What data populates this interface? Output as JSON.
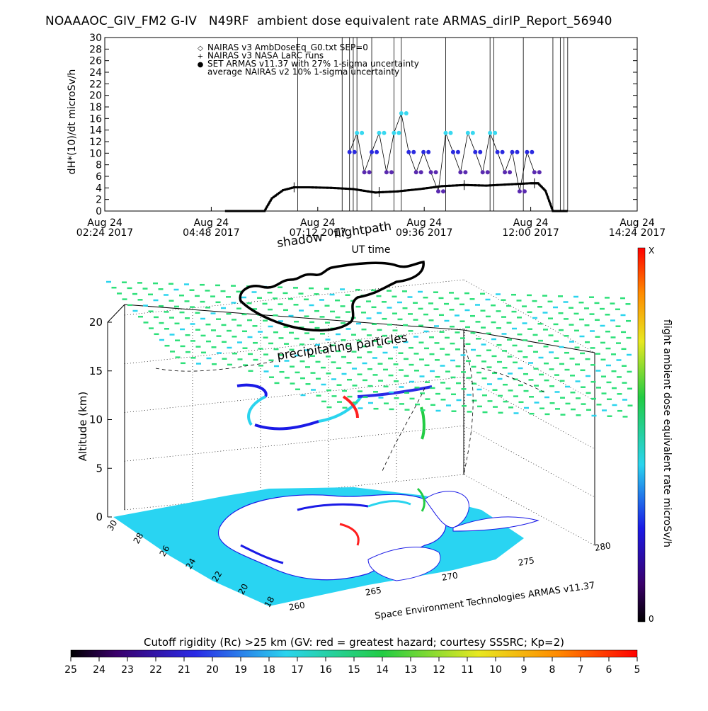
{
  "title": "NOAAAOC_GIV_FM2 G-IV   N49RF  ambient dose equivalent rate ARMAS_dirIP_Report_56940",
  "top_chart": {
    "ylabel": "dH*(10)/dt microSv/h",
    "xlabel": "UT time",
    "x_ticks": [
      {
        "line1": "Aug 24",
        "line2": "02:24 2017"
      },
      {
        "line1": "Aug 24",
        "line2": "04:48 2017"
      },
      {
        "line1": "Aug 24",
        "line2": "07:12 2017"
      },
      {
        "line1": "Aug 24",
        "line2": "09:36 2017"
      },
      {
        "line1": "Aug 24",
        "line2": "12:00 2017"
      },
      {
        "line1": "Aug 24",
        "line2": "14:24 2017"
      }
    ],
    "y_ticks": [
      "0",
      "2",
      "4",
      "6",
      "8",
      "10",
      "12",
      "14",
      "16",
      "18",
      "20",
      "22",
      "24",
      "26",
      "28",
      "30"
    ],
    "legend": [
      {
        "symbol": "◇",
        "text": "NAIRAS v3 AmbDoseEq_G0.txt SEP=0"
      },
      {
        "symbol": "+",
        "text": "NAIRAS v3 NASA LaRC runs"
      },
      {
        "symbol": "●",
        "text": "SET ARMAS v11.37 with 27% 1-sigma uncertainty"
      },
      {
        "symbol": "",
        "text": "average NAIRAS v2 10% 1-sigma uncertainty"
      }
    ]
  },
  "chart_data": [
    {
      "type": "line",
      "title": "NOAAAOC_GIV_FM2 G-IV   N49RF  ambient dose equivalent rate ARMAS_dirIP_Report_56940",
      "xlabel": "UT time",
      "ylabel": "dH*(10)/dt microSv/h",
      "xlim": [
        "2017-08-24 02:24",
        "2017-08-24 14:24"
      ],
      "ylim": [
        0,
        30
      ],
      "series": [
        {
          "name": "NAIRAS v3 AmbDoseEq_G0.txt SEP=0",
          "x": [
            "2017-08-24 05:08",
            "2017-08-24 06:00",
            "2017-08-24 06:10",
            "2017-08-24 06:25",
            "2017-08-24 06:40",
            "2017-08-24 07:00",
            "2017-08-24 07:30",
            "2017-08-24 08:00",
            "2017-08-24 08:30",
            "2017-08-24 09:00",
            "2017-08-24 09:30",
            "2017-08-24 10:00",
            "2017-08-24 10:30",
            "2017-08-24 11:00",
            "2017-08-24 11:30",
            "2017-08-24 12:00",
            "2017-08-24 12:10",
            "2017-08-24 12:20",
            "2017-08-24 12:30",
            "2017-08-24 12:50"
          ],
          "y": [
            0,
            0,
            2.2,
            3.6,
            4.1,
            4.1,
            4.0,
            3.8,
            3.2,
            3.4,
            3.8,
            4.3,
            4.5,
            4.4,
            4.6,
            4.8,
            4.8,
            3.5,
            0,
            0
          ]
        },
        {
          "name": "SET ARMAS v11.37 with 27% 1-sigma uncertainty",
          "x": [
            "2017-08-24 07:55",
            "2017-08-24 08:05",
            "2017-08-24 08:15",
            "2017-08-24 08:25",
            "2017-08-24 08:35",
            "2017-08-24 08:45",
            "2017-08-24 08:55",
            "2017-08-24 09:05",
            "2017-08-24 09:15",
            "2017-08-24 09:25",
            "2017-08-24 09:35",
            "2017-08-24 09:45",
            "2017-08-24 09:55",
            "2017-08-24 10:05",
            "2017-08-24 10:15",
            "2017-08-24 10:25",
            "2017-08-24 10:35",
            "2017-08-24 10:45",
            "2017-08-24 10:55",
            "2017-08-24 11:05",
            "2017-08-24 11:15",
            "2017-08-24 11:25",
            "2017-08-24 11:35",
            "2017-08-24 11:45",
            "2017-08-24 11:55",
            "2017-08-24 12:05"
          ],
          "y": [
            10.2,
            13.5,
            6.7,
            10.2,
            13.5,
            6.7,
            13.5,
            16.9,
            10.2,
            6.7,
            10.2,
            6.7,
            3.4,
            13.5,
            10.2,
            6.7,
            13.5,
            10.2,
            6.7,
            13.5,
            10.2,
            6.7,
            10.2,
            3.4,
            10.2,
            6.7
          ]
        }
      ]
    },
    {
      "type": "scatter",
      "title": "",
      "xlabel": "",
      "ylabel": "Altitude (km)",
      "zlim": [
        0,
        20
      ],
      "z_ticks": [
        "0",
        "5",
        "10",
        "15",
        "20"
      ],
      "lat_ticks": [
        "18",
        "20",
        "22",
        "24",
        "26",
        "28",
        "30"
      ],
      "lon_ticks": [
        "260",
        "265",
        "270",
        "275",
        "280"
      ],
      "annotations": [
        "shadow",
        "flightpath",
        "precipitating particles"
      ],
      "colorbar": {
        "label": "flight ambient dose equivalent rate microSv/h",
        "max_label": "X",
        "min_label": "0"
      }
    },
    {
      "type": "heatmap",
      "title": "Cutoff rigidity (Rc) >25 km (GV: red = greatest hazard; courtesy SSSRC; Kp=2)",
      "ticks": [
        "25",
        "24",
        "23",
        "22",
        "21",
        "20",
        "19",
        "18",
        "17",
        "16",
        "15",
        "14",
        "13",
        "12",
        "11",
        "10",
        "9",
        "8",
        "7",
        "6",
        "5"
      ]
    }
  ],
  "credit": "Space Environment Technologies ARMAS v11.37",
  "colors": {
    "armas_high": "#38d8f0",
    "armas_mid": "#2a2ae0",
    "armas_low": "#5a2ab0",
    "nairas_line": "#000000",
    "precip_particles": "#2ee07a",
    "ocean": "#29d4f2"
  }
}
